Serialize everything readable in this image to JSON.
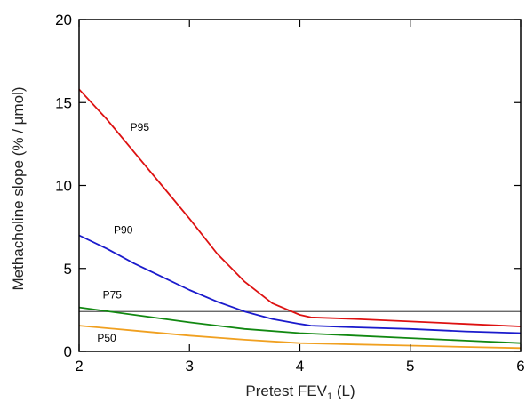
{
  "chart_data": {
    "type": "line",
    "title": "",
    "xlabel": "Pretest FEV",
    "xlabel_subscript": "1",
    "xlabel_suffix": " (L)",
    "ylabel": "Methacholine slope (% / µmol)",
    "xlim": [
      2,
      6
    ],
    "ylim": [
      0,
      20
    ],
    "x_ticks": [
      2,
      3,
      4,
      5,
      6
    ],
    "y_ticks": [
      0,
      5,
      10,
      15,
      20
    ],
    "grid": false,
    "legend": "none",
    "reference_line": {
      "y": 2.4,
      "color": "#555555"
    },
    "series": [
      {
        "name": "P95",
        "color": "#dd1111",
        "x": [
          2.0,
          2.25,
          2.5,
          2.75,
          3.0,
          3.25,
          3.5,
          3.75,
          4.0,
          4.1,
          4.5,
          5.0,
          5.5,
          6.0
        ],
        "y": [
          15.8,
          14.0,
          12.0,
          10.0,
          8.0,
          5.9,
          4.2,
          2.9,
          2.2,
          2.05,
          1.95,
          1.8,
          1.65,
          1.5
        ]
      },
      {
        "name": "P90",
        "color": "#1a1acc",
        "x": [
          2.0,
          2.25,
          2.5,
          2.75,
          3.0,
          3.25,
          3.5,
          3.75,
          4.0,
          4.1,
          4.5,
          5.0,
          5.5,
          6.0
        ],
        "y": [
          7.0,
          6.2,
          5.3,
          4.5,
          3.7,
          3.0,
          2.4,
          1.95,
          1.65,
          1.55,
          1.45,
          1.35,
          1.2,
          1.1
        ]
      },
      {
        "name": "P75",
        "color": "#118811",
        "x": [
          2.0,
          2.5,
          3.0,
          3.5,
          4.0,
          4.5,
          5.0,
          5.5,
          6.0
        ],
        "y": [
          2.65,
          2.2,
          1.75,
          1.35,
          1.1,
          0.95,
          0.8,
          0.65,
          0.5
        ]
      },
      {
        "name": "P50",
        "color": "#f0a020",
        "x": [
          2.0,
          2.5,
          3.0,
          3.5,
          4.0,
          4.5,
          5.0,
          5.5,
          6.0
        ],
        "y": [
          1.55,
          1.25,
          0.95,
          0.7,
          0.5,
          0.42,
          0.35,
          0.27,
          0.2
        ]
      }
    ],
    "series_labels": [
      {
        "name": "P95",
        "x": 2.55,
        "y": 13.3
      },
      {
        "name": "P90",
        "x": 2.4,
        "y": 7.1
      },
      {
        "name": "P75",
        "x": 2.3,
        "y": 3.2
      },
      {
        "name": "P50",
        "x": 2.25,
        "y": 0.6
      }
    ]
  }
}
